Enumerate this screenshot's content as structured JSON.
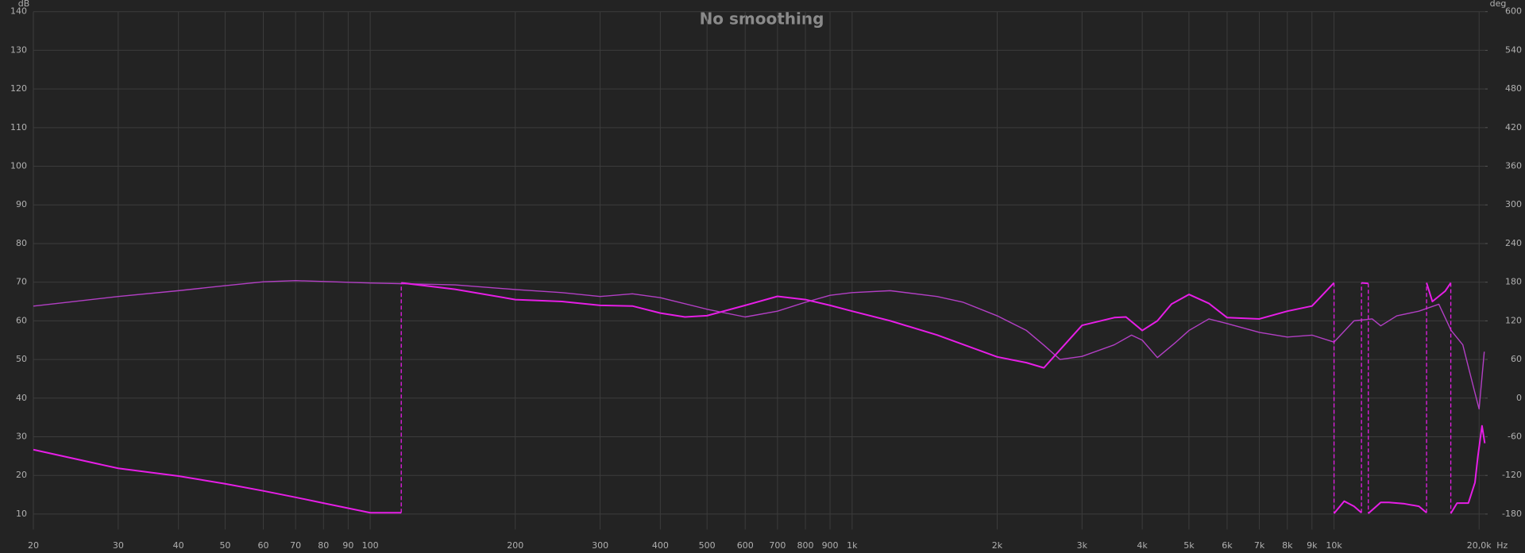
{
  "chart_data": {
    "type": "line",
    "title": "No smoothing",
    "x_label": "Hz",
    "y_label": "dB",
    "y2_label": "deg",
    "xscale": "log",
    "grid": true,
    "xlim": [
      20,
      20600
    ],
    "ylim": [
      6,
      140
    ],
    "y2lim": [
      -204,
      600
    ],
    "xticks": [
      20,
      30,
      40,
      50,
      60,
      70,
      80,
      90,
      100,
      200,
      300,
      400,
      500,
      600,
      700,
      800,
      900,
      {
        "value": 1000,
        "label": "1k"
      },
      {
        "value": 2000,
        "label": "2k"
      },
      {
        "value": 3000,
        "label": "3k"
      },
      {
        "value": 4000,
        "label": "4k"
      },
      {
        "value": 5000,
        "label": "5k"
      },
      {
        "value": 6000,
        "label": "6k"
      },
      {
        "value": 7000,
        "label": "7k"
      },
      {
        "value": 8000,
        "label": "8k"
      },
      {
        "value": 9000,
        "label": "9k"
      },
      {
        "value": 10000,
        "label": "10k"
      },
      {
        "value": 20000,
        "label": "20,0k"
      }
    ],
    "yticks": [
      10,
      20,
      30,
      40,
      50,
      60,
      70,
      80,
      90,
      100,
      110,
      120,
      130,
      140
    ],
    "y2ticks": [
      -180,
      -120,
      -60,
      0,
      60,
      120,
      180,
      240,
      300,
      360,
      420,
      480,
      540,
      600
    ],
    "series": [
      {
        "color": "#b23fc4",
        "x": [
          20,
          30,
          40,
          50,
          60,
          70,
          100,
          150,
          200,
          250,
          300,
          350,
          400,
          500,
          600,
          700,
          800,
          900,
          1000,
          1200,
          1500,
          1700,
          2000,
          2300,
          2500,
          2700,
          3000,
          3500,
          3800,
          4000,
          4300,
          4700,
          5000,
          5500,
          6000,
          7000,
          8000,
          9000,
          10000,
          11000,
          12000,
          12500,
          13500,
          15000,
          16500,
          17500,
          18500,
          19500,
          20000,
          20500
        ],
        "values": [
          63.8,
          66.3,
          67.8,
          69.1,
          70.1,
          70.4,
          69.8,
          69.3,
          68.1,
          67.3,
          66.3,
          67,
          66,
          63,
          61,
          62.5,
          64.8,
          66.6,
          67.3,
          67.8,
          66.3,
          64.8,
          61.3,
          57.5,
          53.7,
          50,
          50.8,
          53.8,
          56.3,
          55,
          50.5,
          54.5,
          57.5,
          60.5,
          59.3,
          57,
          55.8,
          56.3,
          54.5,
          60,
          60.5,
          58.7,
          61.3,
          62.5,
          64.3,
          57.5,
          53.8,
          42.5,
          37.2,
          52
        ]
      },
      {
        "color": "#e61ee6",
        "axis": "y2",
        "x": [
          20,
          30,
          40,
          50,
          60,
          70,
          80,
          100,
          116,
          116,
          150,
          200,
          250,
          300,
          350,
          400,
          450,
          500,
          600,
          700,
          800,
          900,
          1000,
          1200,
          1500,
          2000,
          2300,
          2500,
          2700,
          3000,
          3500,
          3700,
          4000,
          4300,
          4600,
          5000,
          5500,
          6000,
          7000,
          8000,
          9000,
          10000,
          10000,
          10500,
          11000,
          11400,
          11400,
          11780,
          11780,
          12500,
          13000,
          14000,
          15000,
          15560,
          15560,
          16000,
          17000,
          17470,
          17470,
          18000,
          19000,
          19610,
          19880,
          20280,
          20550
        ],
        "values": [
          -80,
          -109,
          -121,
          -133,
          -144,
          -154,
          -163,
          -178,
          -178,
          179,
          169,
          153,
          150,
          144,
          143,
          132,
          126,
          128,
          144,
          158,
          153,
          144,
          135,
          120,
          98,
          64,
          55,
          47,
          75,
          113,
          125,
          126,
          105,
          120,
          146,
          161,
          147,
          125,
          123,
          135,
          143,
          179,
          -179,
          -160,
          -168,
          -178,
          179,
          178,
          -179,
          -162,
          -162,
          -164,
          -168,
          -178,
          179,
          150,
          166,
          179,
          -179,
          -163,
          -163,
          -131,
          -91,
          -43,
          -70
        ]
      }
    ]
  }
}
